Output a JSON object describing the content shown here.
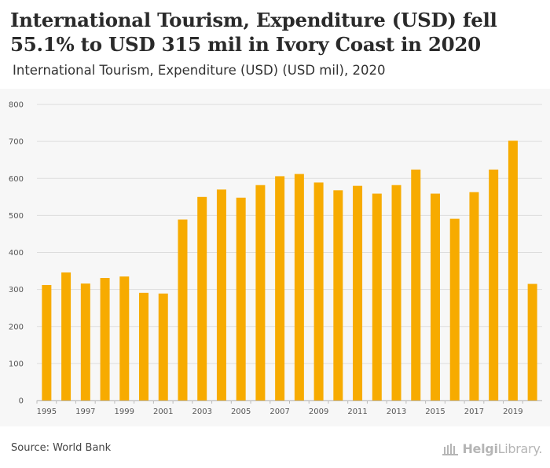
{
  "header": {
    "title": "International Tourism, Expenditure (USD) fell 55.1% to USD 315 mil in Ivory Coast in 2020",
    "subtitle": "International Tourism, Expenditure (USD) (USD mil), 2020"
  },
  "footer": {
    "source": "Source: World Bank",
    "logo_primary": "Helgi",
    "logo_secondary": "Library."
  },
  "colors": {
    "bar": "#f7ab00",
    "plot_background": "#f7f7f7",
    "grid": "#dddddd"
  },
  "chart_data": {
    "type": "bar",
    "title": "International Tourism, Expenditure (USD) (USD mil), 2020",
    "xlabel": "",
    "ylabel": "",
    "ylim": [
      0,
      800
    ],
    "y_ticks": [
      0,
      100,
      200,
      300,
      400,
      500,
      600,
      700,
      800
    ],
    "grid": true,
    "categories": [
      "1995",
      "1996",
      "1997",
      "1998",
      "1999",
      "2000",
      "2001",
      "2002",
      "2003",
      "2004",
      "2005",
      "2006",
      "2007",
      "2008",
      "2009",
      "2010",
      "2011",
      "2012",
      "2013",
      "2014",
      "2015",
      "2016",
      "2017",
      "2018",
      "2019",
      "2020"
    ],
    "x_tick_labels": [
      "1995",
      "1997",
      "1999",
      "2001",
      "2003",
      "2005",
      "2007",
      "2009",
      "2011",
      "2013",
      "2015",
      "2017",
      "2019"
    ],
    "values": [
      312,
      346,
      316,
      331,
      335,
      291,
      289,
      489,
      550,
      570,
      548,
      582,
      606,
      612,
      589,
      568,
      580,
      559,
      582,
      624,
      559,
      491,
      563,
      624,
      702,
      315
    ]
  }
}
